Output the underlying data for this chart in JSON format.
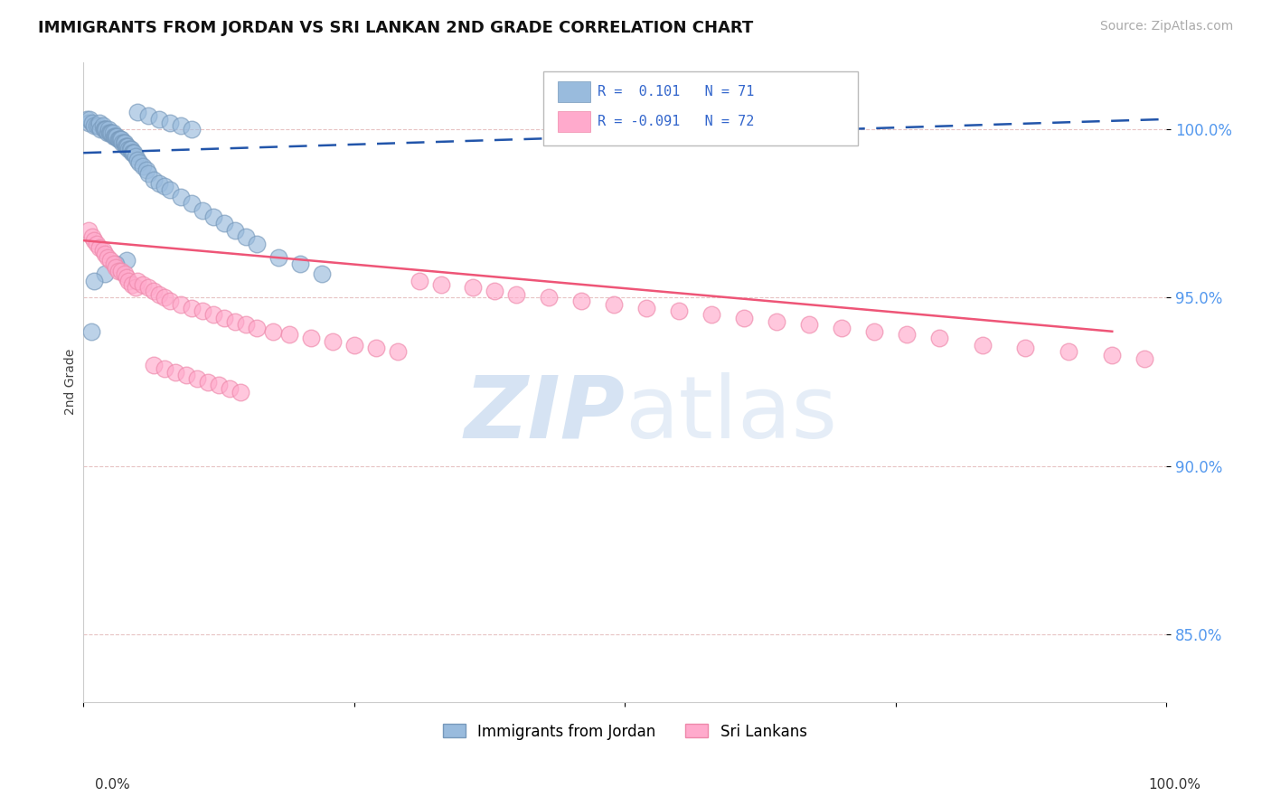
{
  "title": "IMMIGRANTS FROM JORDAN VS SRI LANKAN 2ND GRADE CORRELATION CHART",
  "source": "Source: ZipAtlas.com",
  "ylabel": "2nd Grade",
  "xlim": [
    0.0,
    1.0
  ],
  "ylim": [
    0.83,
    1.02
  ],
  "yticks": [
    0.85,
    0.9,
    0.95,
    1.0
  ],
  "ytick_labels": [
    "85.0%",
    "90.0%",
    "95.0%",
    "100.0%"
  ],
  "legend_line1": "R =  0.101   N = 71",
  "legend_line2": "R = -0.091   N = 72",
  "legend_label_blue": "Immigrants from Jordan",
  "legend_label_pink": "Sri Lankans",
  "blue_color": "#99BBDD",
  "blue_edge_color": "#7799BB",
  "pink_color": "#FFAACC",
  "pink_edge_color": "#EE88AA",
  "blue_line_color": "#2255AA",
  "pink_line_color": "#EE5577",
  "grid_color": "#DDAAAA",
  "watermark_color": "#CCDDF0",
  "blue_scatter_x": [
    0.003,
    0.005,
    0.006,
    0.008,
    0.01,
    0.012,
    0.014,
    0.015,
    0.016,
    0.018,
    0.019,
    0.02,
    0.021,
    0.022,
    0.023,
    0.024,
    0.025,
    0.026,
    0.027,
    0.028,
    0.029,
    0.03,
    0.031,
    0.032,
    0.033,
    0.034,
    0.035,
    0.036,
    0.037,
    0.038,
    0.039,
    0.04,
    0.041,
    0.042,
    0.043,
    0.044,
    0.045,
    0.046,
    0.047,
    0.048,
    0.05,
    0.052,
    0.055,
    0.058,
    0.06,
    0.065,
    0.07,
    0.075,
    0.08,
    0.09,
    0.1,
    0.11,
    0.12,
    0.13,
    0.14,
    0.15,
    0.16,
    0.18,
    0.2,
    0.22,
    0.05,
    0.06,
    0.07,
    0.08,
    0.09,
    0.1,
    0.04,
    0.03,
    0.02,
    0.01,
    0.007
  ],
  "blue_scatter_y": [
    1.003,
    1.002,
    1.003,
    1.002,
    1.001,
    1.001,
    1.001,
    1.002,
    1.0,
    1.001,
    1.0,
    1.0,
    1.0,
    0.999,
    1.0,
    0.999,
    0.999,
    0.999,
    0.999,
    0.998,
    0.998,
    0.998,
    0.998,
    0.997,
    0.997,
    0.997,
    0.997,
    0.996,
    0.996,
    0.996,
    0.995,
    0.995,
    0.995,
    0.994,
    0.994,
    0.994,
    0.993,
    0.993,
    0.993,
    0.992,
    0.991,
    0.99,
    0.989,
    0.988,
    0.987,
    0.985,
    0.984,
    0.983,
    0.982,
    0.98,
    0.978,
    0.976,
    0.974,
    0.972,
    0.97,
    0.968,
    0.966,
    0.962,
    0.96,
    0.957,
    1.005,
    1.004,
    1.003,
    1.002,
    1.001,
    1.0,
    0.961,
    0.96,
    0.957,
    0.955,
    0.94
  ],
  "pink_scatter_x": [
    0.005,
    0.008,
    0.01,
    0.012,
    0.015,
    0.018,
    0.02,
    0.022,
    0.025,
    0.028,
    0.03,
    0.032,
    0.035,
    0.038,
    0.04,
    0.042,
    0.045,
    0.048,
    0.05,
    0.055,
    0.06,
    0.065,
    0.07,
    0.075,
    0.08,
    0.09,
    0.1,
    0.11,
    0.12,
    0.13,
    0.14,
    0.15,
    0.16,
    0.175,
    0.19,
    0.21,
    0.23,
    0.25,
    0.27,
    0.29,
    0.31,
    0.33,
    0.36,
    0.38,
    0.4,
    0.43,
    0.46,
    0.49,
    0.52,
    0.55,
    0.58,
    0.61,
    0.64,
    0.67,
    0.7,
    0.73,
    0.76,
    0.79,
    0.83,
    0.87,
    0.91,
    0.95,
    0.98,
    0.065,
    0.075,
    0.085,
    0.095,
    0.105,
    0.115,
    0.125,
    0.135,
    0.145
  ],
  "pink_scatter_y": [
    0.97,
    0.968,
    0.967,
    0.966,
    0.965,
    0.964,
    0.963,
    0.962,
    0.961,
    0.96,
    0.959,
    0.958,
    0.958,
    0.957,
    0.956,
    0.955,
    0.954,
    0.953,
    0.955,
    0.954,
    0.953,
    0.952,
    0.951,
    0.95,
    0.949,
    0.948,
    0.947,
    0.946,
    0.945,
    0.944,
    0.943,
    0.942,
    0.941,
    0.94,
    0.939,
    0.938,
    0.937,
    0.936,
    0.935,
    0.934,
    0.955,
    0.954,
    0.953,
    0.952,
    0.951,
    0.95,
    0.949,
    0.948,
    0.947,
    0.946,
    0.945,
    0.944,
    0.943,
    0.942,
    0.941,
    0.94,
    0.939,
    0.938,
    0.936,
    0.935,
    0.934,
    0.933,
    0.932,
    0.93,
    0.929,
    0.928,
    0.927,
    0.926,
    0.925,
    0.924,
    0.923,
    0.922
  ],
  "blue_line_x0": 0.0,
  "blue_line_x1": 1.0,
  "blue_line_y0": 0.993,
  "blue_line_y1": 1.003,
  "pink_line_x0": 0.0,
  "pink_line_x1": 0.95,
  "pink_line_y0": 0.967,
  "pink_line_y1": 0.94
}
